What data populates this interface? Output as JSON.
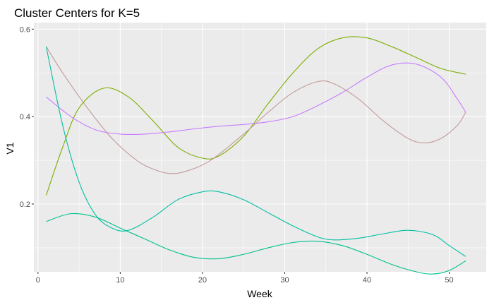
{
  "chart_data": {
    "type": "line",
    "title": "Cluster Centers for K=5",
    "xlabel": "Week",
    "ylabel": "V1",
    "xlim": [
      -0.5,
      54.5
    ],
    "ylim": [
      0.045,
      0.615
    ],
    "x_ticks": [
      0,
      10,
      20,
      30,
      40,
      50
    ],
    "y_ticks": [
      0.2,
      0.4,
      0.6
    ],
    "grid": true,
    "legend": "none",
    "series": [
      {
        "color": "#7cae00",
        "points": [
          [
            1,
            0.22
          ],
          [
            3,
            0.33
          ],
          [
            5,
            0.42
          ],
          [
            8,
            0.465
          ],
          [
            11,
            0.445
          ],
          [
            14,
            0.39
          ],
          [
            17,
            0.33
          ],
          [
            20,
            0.305
          ],
          [
            22,
            0.31
          ],
          [
            25,
            0.355
          ],
          [
            28,
            0.43
          ],
          [
            31,
            0.5
          ],
          [
            34,
            0.555
          ],
          [
            37,
            0.58
          ],
          [
            40,
            0.58
          ],
          [
            43,
            0.56
          ],
          [
            46,
            0.535
          ],
          [
            49,
            0.51
          ],
          [
            52,
            0.497
          ]
        ]
      },
      {
        "color": "#c77cff",
        "points": [
          [
            1,
            0.445
          ],
          [
            4,
            0.4
          ],
          [
            7,
            0.37
          ],
          [
            10,
            0.36
          ],
          [
            13,
            0.36
          ],
          [
            16,
            0.365
          ],
          [
            19,
            0.372
          ],
          [
            22,
            0.378
          ],
          [
            25,
            0.382
          ],
          [
            28,
            0.388
          ],
          [
            31,
            0.4
          ],
          [
            34,
            0.425
          ],
          [
            37,
            0.455
          ],
          [
            40,
            0.49
          ],
          [
            43,
            0.518
          ],
          [
            46,
            0.52
          ],
          [
            49,
            0.49
          ],
          [
            51,
            0.44
          ],
          [
            52,
            0.41
          ]
        ]
      },
      {
        "color": "#c49a9a",
        "points": [
          [
            1,
            0.56
          ],
          [
            3,
            0.5
          ],
          [
            6,
            0.42
          ],
          [
            9,
            0.35
          ],
          [
            12,
            0.3
          ],
          [
            14,
            0.28
          ],
          [
            16,
            0.27
          ],
          [
            18,
            0.275
          ],
          [
            21,
            0.3
          ],
          [
            25,
            0.36
          ],
          [
            28,
            0.41
          ],
          [
            31,
            0.455
          ],
          [
            34,
            0.48
          ],
          [
            36,
            0.475
          ],
          [
            39,
            0.44
          ],
          [
            42,
            0.39
          ],
          [
            45,
            0.35
          ],
          [
            47,
            0.34
          ],
          [
            49,
            0.35
          ],
          [
            51,
            0.38
          ],
          [
            52,
            0.41
          ]
        ]
      },
      {
        "color": "#00c08b",
        "points": [
          [
            1,
            0.16
          ],
          [
            4,
            0.178
          ],
          [
            7,
            0.17
          ],
          [
            10,
            0.145
          ],
          [
            13,
            0.12
          ],
          [
            16,
            0.095
          ],
          [
            19,
            0.078
          ],
          [
            22,
            0.075
          ],
          [
            25,
            0.085
          ],
          [
            28,
            0.1
          ],
          [
            31,
            0.112
          ],
          [
            34,
            0.115
          ],
          [
            37,
            0.105
          ],
          [
            40,
            0.085
          ],
          [
            43,
            0.062
          ],
          [
            46,
            0.045
          ],
          [
            48,
            0.04
          ],
          [
            50,
            0.048
          ],
          [
            52,
            0.07
          ]
        ]
      },
      {
        "color": "#00bfa0",
        "points": [
          [
            1,
            0.56
          ],
          [
            3,
            0.38
          ],
          [
            5,
            0.25
          ],
          [
            7,
            0.175
          ],
          [
            9,
            0.145
          ],
          [
            11,
            0.14
          ],
          [
            14,
            0.17
          ],
          [
            17,
            0.21
          ],
          [
            20,
            0.228
          ],
          [
            22,
            0.228
          ],
          [
            25,
            0.21
          ],
          [
            28,
            0.18
          ],
          [
            31,
            0.15
          ],
          [
            34,
            0.125
          ],
          [
            36,
            0.118
          ],
          [
            39,
            0.122
          ],
          [
            42,
            0.132
          ],
          [
            45,
            0.14
          ],
          [
            48,
            0.13
          ],
          [
            50,
            0.105
          ],
          [
            52,
            0.08
          ]
        ]
      }
    ]
  }
}
